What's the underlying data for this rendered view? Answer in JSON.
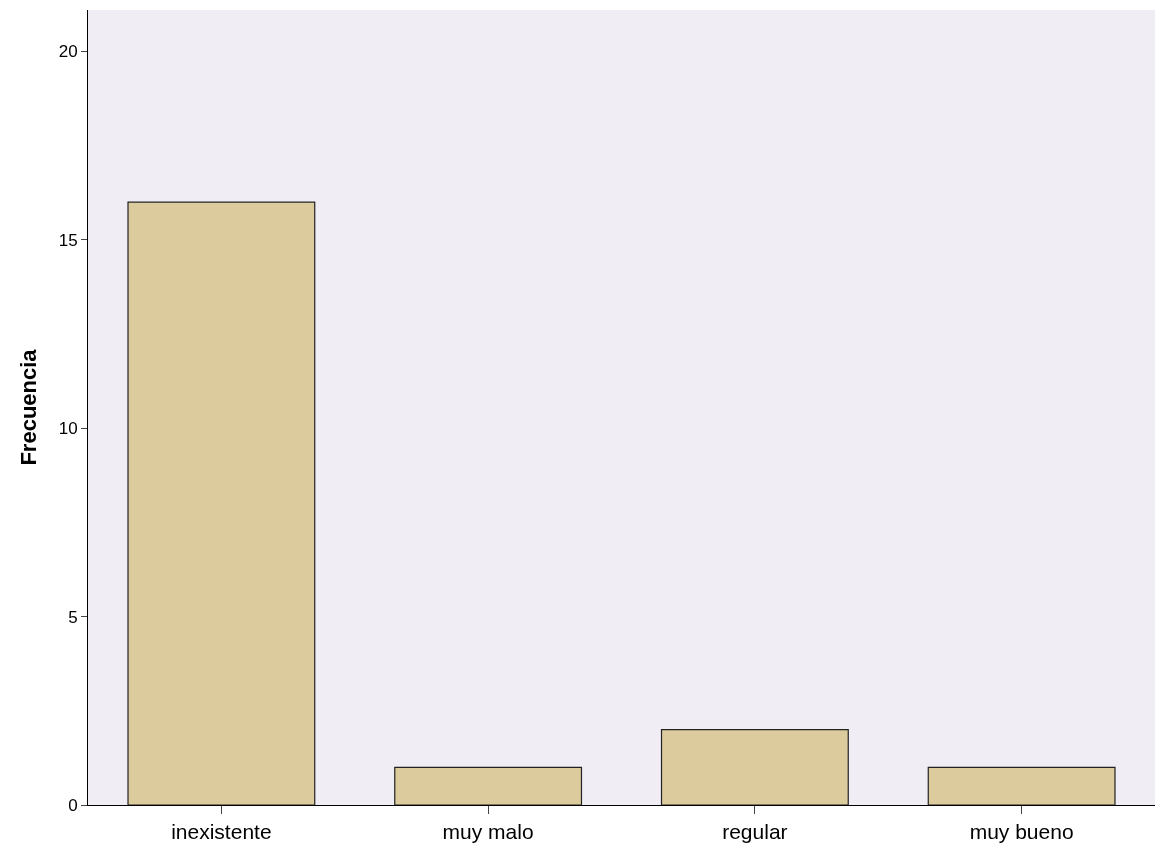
{
  "chart_data": {
    "type": "bar",
    "ylabel": "Frecuencia",
    "categories": [
      "inexistente",
      "muy malo",
      "regular",
      "muy bueno"
    ],
    "values": [
      16,
      1,
      2,
      1
    ],
    "color": "#dccb9c",
    "ylim": [
      0,
      21.1
    ],
    "yticks": [
      0,
      5,
      10,
      15,
      20
    ],
    "grid": false,
    "legend": false
  }
}
